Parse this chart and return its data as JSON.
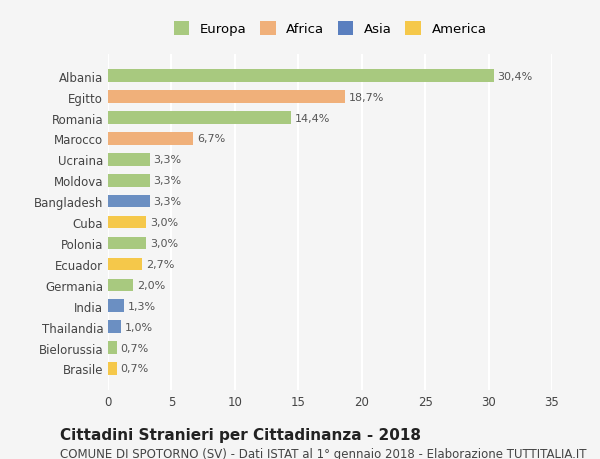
{
  "countries": [
    "Albania",
    "Egitto",
    "Romania",
    "Marocco",
    "Ucraina",
    "Moldova",
    "Bangladesh",
    "Cuba",
    "Polonia",
    "Ecuador",
    "Germania",
    "India",
    "Thailandia",
    "Bielorussia",
    "Brasile"
  ],
  "values": [
    30.4,
    18.7,
    14.4,
    6.7,
    3.3,
    3.3,
    3.3,
    3.0,
    3.0,
    2.7,
    2.0,
    1.3,
    1.0,
    0.7,
    0.7
  ],
  "labels": [
    "30,4%",
    "18,7%",
    "14,4%",
    "6,7%",
    "3,3%",
    "3,3%",
    "3,3%",
    "3,0%",
    "3,0%",
    "2,7%",
    "2,0%",
    "1,3%",
    "1,0%",
    "0,7%",
    "0,7%"
  ],
  "continents": [
    "Europa",
    "Africa",
    "Europa",
    "Africa",
    "Europa",
    "Europa",
    "Asia",
    "America",
    "Europa",
    "America",
    "Europa",
    "Asia",
    "Asia",
    "Europa",
    "America"
  ],
  "colors": {
    "Europa": "#a8c97f",
    "Africa": "#f0b07a",
    "Asia": "#6b8fc2",
    "America": "#f5c84a"
  },
  "legend_colors": {
    "Europa": "#a8c97f",
    "Africa": "#f0b07a",
    "Asia": "#5a7fbf",
    "America": "#f5c84a"
  },
  "xlim": [
    0,
    35
  ],
  "xticks": [
    0,
    5,
    10,
    15,
    20,
    25,
    30,
    35
  ],
  "background_color": "#f5f5f5",
  "grid_color": "#ffffff",
  "title": "Cittadini Stranieri per Cittadinanza - 2018",
  "subtitle": "COMUNE DI SPOTORNO (SV) - Dati ISTAT al 1° gennaio 2018 - Elaborazione TUTTITALIA.IT",
  "title_fontsize": 11,
  "subtitle_fontsize": 8.5,
  "label_fontsize": 8,
  "tick_fontsize": 8.5
}
